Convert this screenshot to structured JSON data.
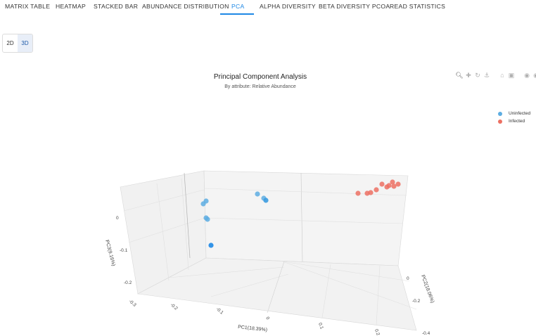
{
  "tabs": [
    {
      "label": "MATRIX TABLE"
    },
    {
      "label": "HEATMAP"
    },
    {
      "label": "STACKED BAR"
    },
    {
      "label": "ABUNDANCE DISTRIBUTION"
    },
    {
      "label": "PCA"
    },
    {
      "label": "ALPHA DIVERSITY"
    },
    {
      "label": "BETA DIVERSITY PCOA"
    },
    {
      "label": "READ STATISTICS"
    }
  ],
  "active_tab": "PCA",
  "view_toggle": {
    "option_2d": "2D",
    "option_3d": "3D",
    "selected": "3D"
  },
  "modebar": [
    "zoom-icon",
    "pan-icon",
    "orbit-icon",
    "turntable-icon",
    "home-icon",
    "camera-icon",
    "plotly-logo-icon",
    "info-icon"
  ],
  "colors": {
    "accent": "#1e88e5",
    "uninfected": "#5dade2",
    "infected": "#ec7063"
  },
  "chart_data": {
    "type": "scatter3d",
    "title": "Principal Component Analysis",
    "subtitle": "By attribute: Relative Abundance",
    "legend_position": "top-right",
    "xaxis": {
      "title": "PC1(18.39%)",
      "ticks": [
        "-0.3",
        "-0.2",
        "-0.1",
        "0",
        "0.1",
        "0.2"
      ]
    },
    "yaxis": {
      "title": "PC2(18.06%)",
      "ticks": [
        "0",
        "-0.2",
        "-0.4"
      ]
    },
    "zaxis": {
      "title": "PC3(9.16%)",
      "ticks": [
        "0",
        "-0.1",
        "-0.2"
      ]
    },
    "series": [
      {
        "name": "Uninfected",
        "color": "#5dade2",
        "point_count": 8
      },
      {
        "name": "Infected",
        "color": "#ec7063",
        "point_count": 10
      }
    ]
  }
}
